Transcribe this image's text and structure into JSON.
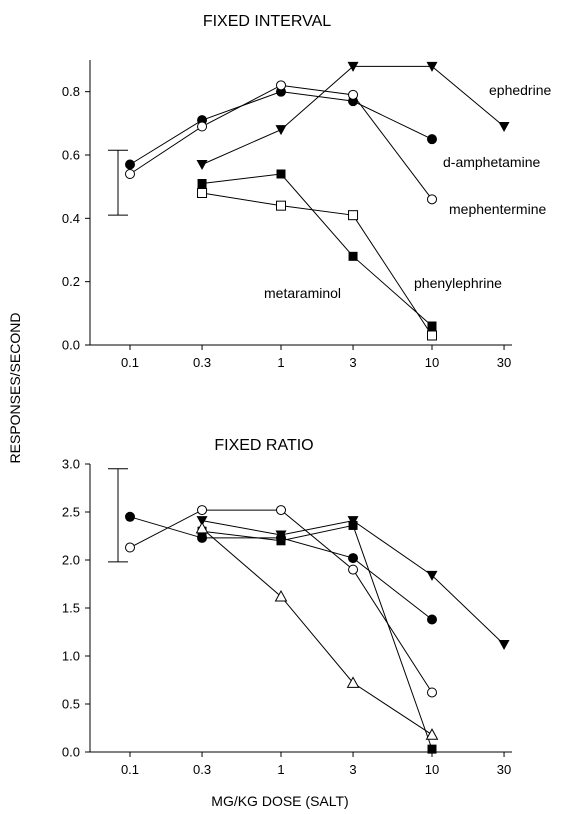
{
  "y_axis_label": "RESPONSES/SECOND",
  "x_axis_label": "MG/KG DOSE (SALT)",
  "chart_data": [
    {
      "type": "line",
      "title": "FIXED INTERVAL",
      "xscale": "log",
      "x_ticks": [
        0.1,
        0.3,
        1,
        3,
        10,
        30
      ],
      "x_tick_labels": [
        "0.1",
        "0.3",
        "1",
        "3",
        "10",
        "30"
      ],
      "y_ticks": [
        0.0,
        0.2,
        0.4,
        0.6,
        0.8
      ],
      "y_tick_labels": [
        "0.0",
        "0.2",
        "0.4",
        "0.6",
        "0.8"
      ],
      "ylim": [
        0,
        0.9
      ],
      "error_bar": [
        0.41,
        0.615
      ],
      "series": [
        {
          "name": "d-amphetamine",
          "marker": "filled-circle",
          "x": [
            0.1,
            0.3,
            1,
            3,
            10
          ],
          "y": [
            0.57,
            0.71,
            0.8,
            0.77,
            0.65
          ]
        },
        {
          "name": "mephentermine",
          "marker": "open-circle",
          "x": [
            0.1,
            0.3,
            1,
            3,
            10
          ],
          "y": [
            0.54,
            0.69,
            0.82,
            0.79,
            0.46
          ]
        },
        {
          "name": "ephedrine",
          "marker": "filled-triangle-down",
          "x": [
            0.3,
            1,
            3,
            10,
            30
          ],
          "y": [
            0.57,
            0.68,
            0.88,
            0.88,
            0.69
          ]
        },
        {
          "name": "metaraminol",
          "marker": "filled-square",
          "x": [
            0.3,
            1,
            3,
            10
          ],
          "y": [
            0.51,
            0.54,
            0.28,
            0.06
          ]
        },
        {
          "name": "phenylephrine",
          "marker": "open-square",
          "x": [
            0.3,
            1,
            3,
            10
          ],
          "y": [
            0.48,
            0.44,
            0.41,
            0.03
          ]
        }
      ]
    },
    {
      "type": "line",
      "title": "FIXED RATIO",
      "xscale": "log",
      "x_ticks": [
        0.1,
        0.3,
        1,
        3,
        10,
        30
      ],
      "x_tick_labels": [
        "0.1",
        "0.3",
        "1",
        "3",
        "10",
        "30"
      ],
      "y_ticks": [
        0.0,
        0.5,
        1.0,
        1.5,
        2.0,
        2.5,
        3.0
      ],
      "y_tick_labels": [
        "0.0",
        "0.5",
        "1.0",
        "1.5",
        "2.0",
        "2.5",
        "3.0"
      ],
      "ylim": [
        0,
        3.0
      ],
      "error_bar": [
        1.98,
        2.95
      ],
      "series": [
        {
          "marker": "filled-circle",
          "x": [
            0.1,
            0.3,
            1,
            3,
            10
          ],
          "y": [
            2.45,
            2.23,
            2.23,
            2.02,
            1.38
          ]
        },
        {
          "marker": "open-circle",
          "x": [
            0.1,
            0.3,
            1,
            3,
            10
          ],
          "y": [
            2.13,
            2.52,
            2.52,
            1.9,
            0.62
          ]
        },
        {
          "marker": "filled-triangle-down",
          "x": [
            0.3,
            1,
            3,
            10,
            30
          ],
          "y": [
            2.41,
            2.26,
            2.41,
            1.84,
            1.12
          ]
        },
        {
          "marker": "filled-square",
          "x": [
            0.3,
            1,
            3,
            10
          ],
          "y": [
            2.3,
            2.2,
            2.36,
            0.03
          ]
        },
        {
          "marker": "open-triangle-up",
          "x": [
            0.3,
            1,
            3,
            10
          ],
          "y": [
            2.33,
            1.62,
            0.72,
            0.18
          ]
        }
      ]
    }
  ]
}
